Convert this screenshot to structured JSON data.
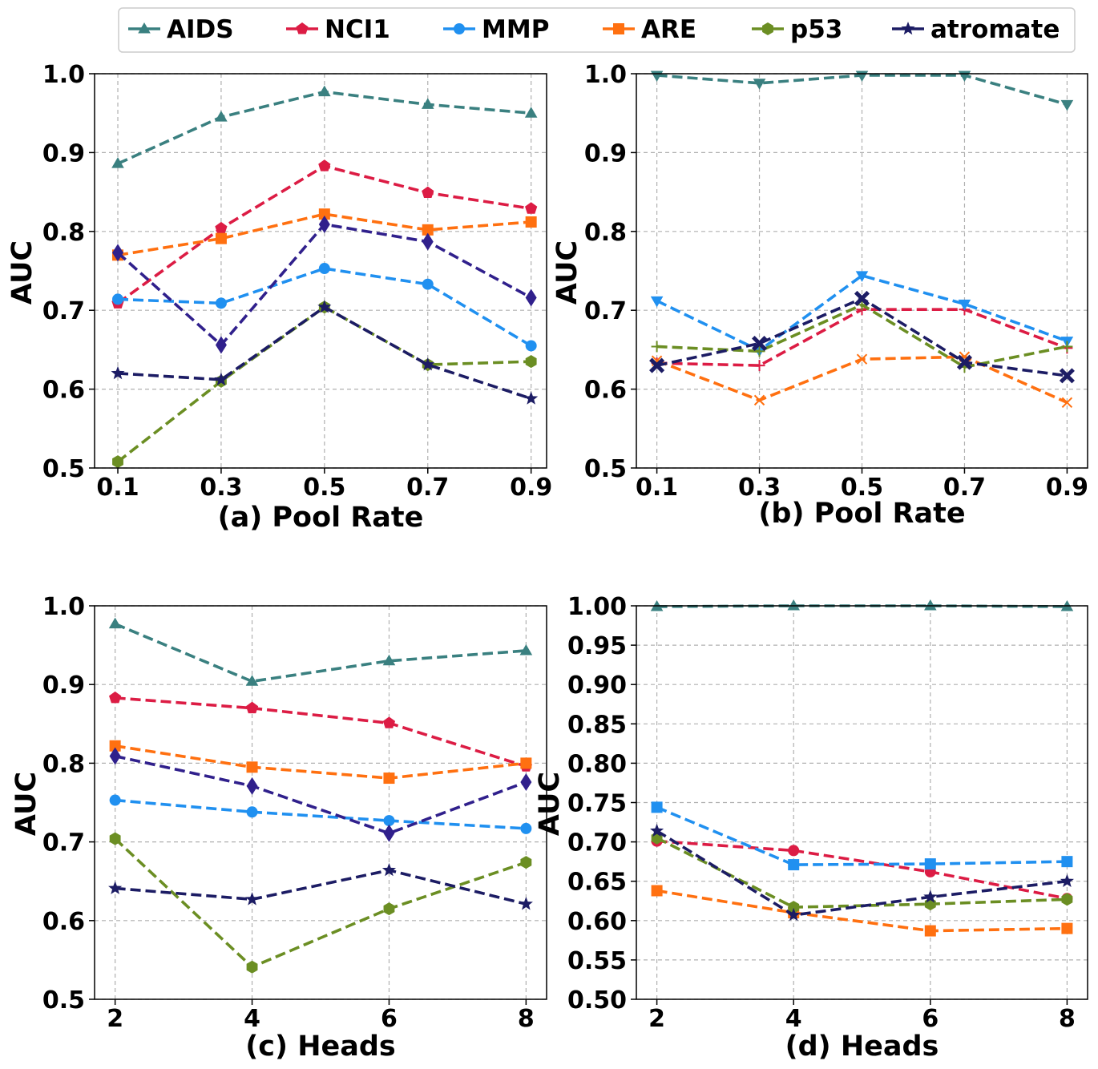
{
  "legend": {
    "placement": "top-center",
    "entries": [
      {
        "name": "AIDS",
        "color": "#3a8080",
        "marker": "triangle-up"
      },
      {
        "name": "NCI1",
        "color": "#dc1c44",
        "marker": "pentagon"
      },
      {
        "name": "MMP",
        "color": "#2090f0",
        "marker": "circle"
      },
      {
        "name": "ARE",
        "color": "#ff7010",
        "marker": "square"
      },
      {
        "name": "p53",
        "color": "#6b8e23",
        "marker": "hexagon"
      },
      {
        "name": "atromate",
        "color": "#1c1c64",
        "marker": "star"
      }
    ]
  },
  "chart_data": [
    {
      "type": "line",
      "xlabel": "(a) Pool Rate",
      "ylabel": "AUC",
      "x": [
        0.1,
        0.3,
        0.5,
        0.7,
        0.9
      ],
      "x_ticks": [
        "0.1",
        "0.3",
        "0.5",
        "0.7",
        "0.9"
      ],
      "xlim": [
        0.055,
        0.93
      ],
      "ylim": [
        0.5,
        1.0
      ],
      "y_ticks": [
        "0.5",
        "0.6",
        "0.7",
        "0.8",
        "0.9",
        "1.0"
      ],
      "grid": true,
      "series": [
        {
          "name": "AIDS",
          "color": "#3a8080",
          "marker": "triangle-up",
          "values": [
            0.886,
            0.945,
            0.977,
            0.961,
            0.95
          ]
        },
        {
          "name": "NCI1",
          "color": "#dc1c44",
          "marker": "pentagon",
          "values": [
            0.709,
            0.804,
            0.883,
            0.849,
            0.829
          ]
        },
        {
          "name": "MMP",
          "color": "#2090f0",
          "marker": "circle",
          "values": [
            0.714,
            0.709,
            0.753,
            0.733,
            0.655
          ]
        },
        {
          "name": "ARE",
          "color": "#ff7010",
          "marker": "square",
          "values": [
            0.77,
            0.791,
            0.822,
            0.802,
            0.812
          ]
        },
        {
          "name": "p53",
          "color": "#6b8e23",
          "marker": "hexagon",
          "values": [
            0.508,
            0.61,
            0.704,
            0.631,
            0.635
          ]
        },
        {
          "name": "atromate",
          "color": "#1c1c64",
          "marker": "star",
          "values": [
            0.62,
            0.612,
            0.704,
            0.631,
            0.588
          ]
        },
        {
          "name": "",
          "color": "#30208c",
          "marker": "diamond",
          "values": [
            0.773,
            0.656,
            0.809,
            0.787,
            0.716
          ]
        }
      ]
    },
    {
      "type": "line",
      "xlabel": "(b) Pool Rate",
      "ylabel": "AUC",
      "x": [
        0.1,
        0.3,
        0.5,
        0.7,
        0.9
      ],
      "x_ticks": [
        "0.1",
        "0.3",
        "0.5",
        "0.7",
        "0.9"
      ],
      "xlim": [
        0.06,
        0.94
      ],
      "ylim": [
        0.5,
        1.0
      ],
      "y_ticks": [
        "0.5",
        "0.6",
        "0.7",
        "0.8",
        "0.9",
        "1.0"
      ],
      "grid": true,
      "series": [
        {
          "name": "AIDS",
          "color": "#3a8080",
          "marker": "triangle-down",
          "values": [
            0.998,
            0.988,
            0.998,
            0.998,
            0.961
          ]
        },
        {
          "name": "NCI1",
          "color": "#dc1c44",
          "marker": "plus",
          "values": [
            0.633,
            0.63,
            0.701,
            0.701,
            0.652
          ]
        },
        {
          "name": "MMP",
          "color": "#2090f0",
          "marker": "triangle-down",
          "values": [
            0.712,
            0.649,
            0.744,
            0.708,
            0.661
          ]
        },
        {
          "name": "ARE",
          "color": "#ff7010",
          "marker": "x",
          "values": [
            0.636,
            0.586,
            0.638,
            0.641,
            0.583
          ]
        },
        {
          "name": "p53",
          "color": "#6b8e23",
          "marker": "plus",
          "values": [
            0.654,
            0.648,
            0.707,
            0.628,
            0.654
          ]
        },
        {
          "name": "atromate",
          "color": "#1c1c64",
          "marker": "x-filled",
          "values": [
            0.63,
            0.658,
            0.715,
            0.634,
            0.617
          ]
        }
      ]
    },
    {
      "type": "line",
      "xlabel": "(c) Heads",
      "ylabel": "AUC",
      "x": [
        2,
        4,
        6,
        8
      ],
      "x_ticks": [
        "2",
        "4",
        "6",
        "8"
      ],
      "xlim": [
        1.7,
        8.3
      ],
      "ylim": [
        0.5,
        1.0
      ],
      "y_ticks": [
        "0.5",
        "0.6",
        "0.7",
        "0.8",
        "0.9",
        "1.0"
      ],
      "grid": true,
      "series": [
        {
          "name": "AIDS",
          "color": "#3a8080",
          "marker": "triangle-up",
          "values": [
            0.977,
            0.904,
            0.93,
            0.943
          ]
        },
        {
          "name": "NCI1",
          "color": "#dc1c44",
          "marker": "pentagon",
          "values": [
            0.883,
            0.87,
            0.851,
            0.796
          ]
        },
        {
          "name": "MMP",
          "color": "#2090f0",
          "marker": "circle",
          "values": [
            0.753,
            0.738,
            0.727,
            0.717
          ]
        },
        {
          "name": "ARE",
          "color": "#ff7010",
          "marker": "square",
          "values": [
            0.822,
            0.795,
            0.781,
            0.8
          ]
        },
        {
          "name": "p53",
          "color": "#6b8e23",
          "marker": "hexagon",
          "values": [
            0.704,
            0.541,
            0.615,
            0.674
          ]
        },
        {
          "name": "atromate",
          "color": "#1c1c64",
          "marker": "star",
          "values": [
            0.641,
            0.627,
            0.664,
            0.621
          ]
        },
        {
          "name": "",
          "color": "#30208c",
          "marker": "diamond",
          "values": [
            0.809,
            0.771,
            0.711,
            0.776
          ]
        }
      ]
    },
    {
      "type": "line",
      "xlabel": "(d) Heads",
      "ylabel": "AUC",
      "x": [
        2,
        4,
        6,
        8
      ],
      "x_ticks": [
        "2",
        "4",
        "6",
        "8"
      ],
      "xlim": [
        1.7,
        8.3
      ],
      "ylim": [
        0.5,
        1.0
      ],
      "y_ticks": [
        "0.50",
        "0.55",
        "0.60",
        "0.65",
        "0.70",
        "0.75",
        "0.80",
        "0.85",
        "0.90",
        "0.95",
        "1.00"
      ],
      "grid": true,
      "series": [
        {
          "name": "AIDS",
          "color": "#3a8080",
          "marker": "triangle-up",
          "values": [
            0.999,
            1.0,
            1.0,
            0.999
          ]
        },
        {
          "name": "NCI1",
          "color": "#dc1c44",
          "marker": "circle",
          "values": [
            0.701,
            0.689,
            0.662,
            0.628
          ]
        },
        {
          "name": "MMP",
          "color": "#2090f0",
          "marker": "square",
          "values": [
            0.744,
            0.671,
            0.672,
            0.675
          ]
        },
        {
          "name": "ARE",
          "color": "#ff7010",
          "marker": "square",
          "values": [
            0.638,
            0.61,
            0.587,
            0.59
          ]
        },
        {
          "name": "p53",
          "color": "#6b8e23",
          "marker": "hexagon",
          "values": [
            0.705,
            0.617,
            0.621,
            0.627
          ]
        },
        {
          "name": "atromate",
          "color": "#1c1c64",
          "marker": "star",
          "values": [
            0.714,
            0.607,
            0.63,
            0.65
          ]
        }
      ]
    }
  ]
}
